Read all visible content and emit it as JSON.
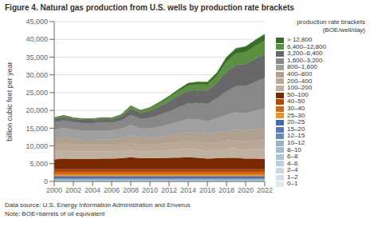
{
  "chart_data": {
    "type": "area",
    "stacked": true,
    "title": "Figure 4. Natural gas production from U.S. wells by production rate brackets",
    "y_label": "billion cubic feet per year",
    "legend_title": "production rate brackets\n(BOE/well/day)",
    "annotations": [
      "Data source: U.S. Energy Information Administration and Enverus",
      "Note: BOE=barrels of oil equivalent"
    ],
    "legend": "right",
    "grid": "y",
    "x": [
      2000,
      2001,
      2002,
      2003,
      2004,
      2005,
      2006,
      2007,
      2008,
      2009,
      2010,
      2011,
      2012,
      2013,
      2014,
      2015,
      2016,
      2017,
      2018,
      2019,
      2020,
      2021,
      2022
    ],
    "xlim": [
      2000,
      2022
    ],
    "xticks": [
      2000,
      2002,
      2004,
      2006,
      2008,
      2010,
      2012,
      2014,
      2016,
      2018,
      2020,
      2022
    ],
    "ylim": [
      0,
      45000
    ],
    "yticks": [
      0,
      {
        "value": 5000,
        "label": "5,000"
      },
      {
        "value": 10000,
        "label": "10,000"
      },
      {
        "value": 15000,
        "label": "15,000"
      },
      {
        "value": 20000,
        "label": "20,000"
      },
      {
        "value": 25000,
        "label": "25,000"
      },
      {
        "value": 30000,
        "label": "30,000"
      },
      {
        "value": 35000,
        "label": "35,000"
      },
      {
        "value": 40000,
        "label": "40,000"
      },
      {
        "value": 45000,
        "label": "45,000"
      }
    ],
    "series": [
      {
        "name": "0–1",
        "color": "#e0e8f0",
        "values": [
          30,
          30,
          30,
          30,
          30,
          30,
          30,
          30,
          30,
          30,
          30,
          30,
          30,
          30,
          30,
          30,
          30,
          30,
          30,
          30,
          30,
          30,
          30
        ]
      },
      {
        "name": "1–2",
        "color": "#d5e0ea",
        "values": [
          50,
          50,
          50,
          50,
          50,
          50,
          50,
          50,
          50,
          50,
          50,
          50,
          50,
          50,
          50,
          50,
          50,
          50,
          50,
          50,
          50,
          50,
          50
        ]
      },
      {
        "name": "2–4",
        "color": "#c8d8e8",
        "values": [
          70,
          70,
          70,
          70,
          70,
          70,
          70,
          70,
          70,
          70,
          70,
          70,
          70,
          70,
          70,
          70,
          70,
          70,
          70,
          70,
          70,
          70,
          70
        ]
      },
      {
        "name": "4–6",
        "color": "#bccee0",
        "values": [
          90,
          90,
          90,
          90,
          90,
          90,
          90,
          90,
          90,
          90,
          90,
          90,
          90,
          90,
          90,
          90,
          90,
          90,
          90,
          90,
          90,
          90,
          90
        ]
      },
      {
        "name": "6–8",
        "color": "#b0c4d8",
        "values": [
          110,
          110,
          110,
          110,
          110,
          110,
          110,
          110,
          110,
          110,
          110,
          110,
          110,
          110,
          110,
          110,
          110,
          110,
          110,
          110,
          110,
          110,
          110
        ]
      },
      {
        "name": "8–10",
        "color": "#a4bad0",
        "values": [
          130,
          130,
          130,
          130,
          130,
          130,
          130,
          130,
          130,
          130,
          130,
          130,
          130,
          130,
          130,
          130,
          130,
          130,
          130,
          130,
          130,
          130,
          130
        ]
      },
      {
        "name": "10–12",
        "color": "#98b0c8",
        "values": [
          150,
          150,
          150,
          150,
          150,
          150,
          150,
          150,
          150,
          150,
          150,
          150,
          150,
          150,
          150,
          150,
          150,
          150,
          150,
          150,
          150,
          150,
          150
        ]
      },
      {
        "name": "12–15",
        "color": "#6888b8",
        "values": [
          200,
          200,
          200,
          200,
          200,
          200,
          200,
          200,
          200,
          200,
          200,
          200,
          200,
          200,
          200,
          200,
          200,
          200,
          200,
          200,
          200,
          200,
          200
        ]
      },
      {
        "name": "15–20",
        "color": "#5878b0",
        "values": [
          280,
          280,
          280,
          280,
          280,
          280,
          280,
          280,
          280,
          280,
          280,
          280,
          280,
          280,
          280,
          280,
          280,
          280,
          280,
          280,
          280,
          280,
          280
        ]
      },
      {
        "name": "20–25",
        "color": "#4868a8",
        "values": [
          350,
          350,
          350,
          350,
          350,
          350,
          350,
          350,
          350,
          350,
          350,
          350,
          350,
          350,
          350,
          350,
          350,
          350,
          350,
          350,
          350,
          350,
          350
        ]
      },
      {
        "name": "25–30",
        "color": "#e8922a",
        "values": [
          450,
          450,
          450,
          450,
          450,
          450,
          450,
          450,
          450,
          450,
          450,
          450,
          450,
          450,
          450,
          450,
          450,
          450,
          450,
          450,
          450,
          450,
          450
        ]
      },
      {
        "name": "30–40",
        "color": "#d06818",
        "values": [
          700,
          700,
          700,
          700,
          700,
          700,
          700,
          700,
          700,
          700,
          700,
          700,
          700,
          700,
          700,
          700,
          700,
          700,
          700,
          700,
          700,
          700,
          700
        ]
      },
      {
        "name": "40–50",
        "color": "#b84808",
        "values": [
          800,
          800,
          800,
          800,
          800,
          800,
          800,
          800,
          800,
          800,
          800,
          800,
          800,
          800,
          800,
          800,
          800,
          800,
          800,
          800,
          800,
          800,
          800
        ]
      },
      {
        "name": "50–100",
        "color": "#7a2800",
        "values": [
          2800,
          3000,
          2900,
          2900,
          2900,
          3000,
          3000,
          3100,
          3400,
          3100,
          3100,
          3100,
          3200,
          3300,
          3400,
          3200,
          3000,
          3100,
          3200,
          3200,
          3000,
          3000,
          2900
        ]
      },
      {
        "name": "100–200",
        "color": "#c0b0a0",
        "values": [
          2200,
          2300,
          2200,
          2100,
          2100,
          2100,
          2100,
          2100,
          2200,
          2000,
          2100,
          2200,
          2300,
          2400,
          2500,
          2400,
          2300,
          2400,
          2600,
          2700,
          2600,
          2700,
          2800
        ]
      },
      {
        "name": "200–400",
        "color": "#b8a898",
        "values": [
          1900,
          2000,
          1900,
          1800,
          1800,
          1800,
          1800,
          1800,
          2000,
          1800,
          1800,
          1900,
          2000,
          2100,
          2200,
          2200,
          2100,
          2200,
          2300,
          2400,
          2300,
          2400,
          2500
        ]
      },
      {
        "name": "400–800",
        "color": "#b0a090",
        "values": [
          1600,
          1700,
          1600,
          1500,
          1500,
          1500,
          1500,
          1700,
          1900,
          1800,
          1800,
          1900,
          2000,
          2200,
          2400,
          2500,
          2400,
          2600,
          2800,
          3000,
          3000,
          3200,
          3400
        ]
      },
      {
        "name": "800–1,600",
        "color": "#a0a0a0",
        "values": [
          2600,
          2700,
          2600,
          2600,
          2600,
          2600,
          2600,
          2700,
          3000,
          2800,
          2800,
          2900,
          3100,
          3400,
          3700,
          3800,
          3800,
          4100,
          4500,
          4800,
          4900,
          5200,
          5500
        ]
      },
      {
        "name": "1,600–3,200",
        "color": "#888888",
        "values": [
          2100,
          2100,
          2100,
          2100,
          2100,
          2200,
          2100,
          2300,
          2800,
          2700,
          2900,
          3300,
          3700,
          4100,
          4400,
          4600,
          4800,
          5600,
          6600,
          7300,
          7600,
          8100,
          8600
        ]
      },
      {
        "name": "3,200–6,400",
        "color": "#686868",
        "values": [
          1000,
          1000,
          900,
          900,
          900,
          1000,
          1000,
          1200,
          1800,
          1700,
          2000,
          2400,
          2800,
          3200,
          3500,
          3600,
          3700,
          4300,
          5500,
          6000,
          6200,
          6500,
          6800
        ]
      },
      {
        "name": "6,400–12,800",
        "color": "#5a9040",
        "values": [
          300,
          300,
          250,
          250,
          250,
          280,
          300,
          400,
          600,
          550,
          700,
          900,
          1100,
          1300,
          1500,
          1600,
          1700,
          2000,
          2800,
          3200,
          3400,
          3600,
          3800
        ]
      },
      {
        "name": "> 12,800",
        "color": "#3a6e28",
        "values": [
          100,
          100,
          80,
          80,
          80,
          90,
          100,
          130,
          220,
          190,
          220,
          320,
          430,
          530,
          640,
          690,
          740,
          900,
          1250,
          1450,
          1560,
          1660,
          1750
        ]
      }
    ]
  }
}
